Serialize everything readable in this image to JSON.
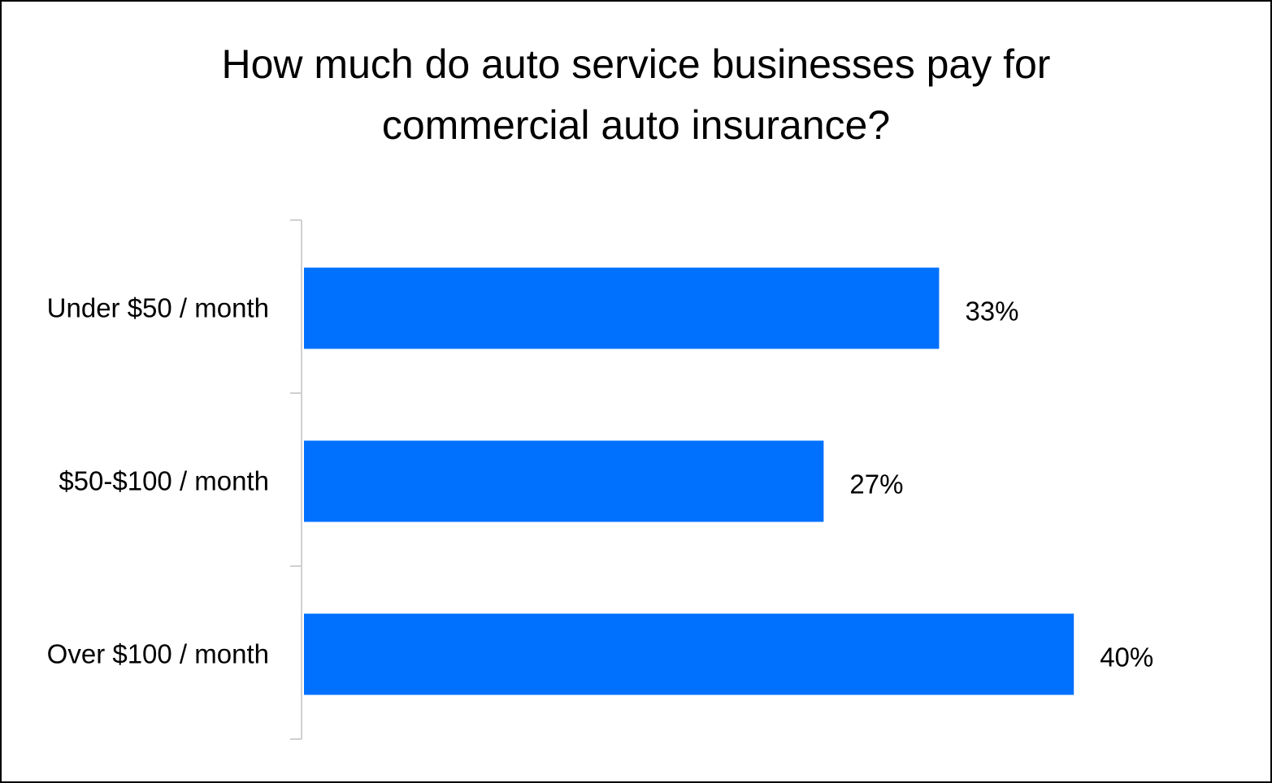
{
  "chart_data": {
    "type": "bar",
    "orientation": "horizontal",
    "title_lines": [
      "How much do auto service businesses pay for",
      "commercial auto insurance?"
    ],
    "categories": [
      "Under $50 / month",
      "$50-$100 / month",
      "Over $100 / month"
    ],
    "values": [
      33,
      27,
      40
    ],
    "value_labels": [
      "33%",
      "27%",
      "40%"
    ],
    "xlabel": "",
    "ylabel": "",
    "xlim": [
      0,
      40
    ],
    "grid": false,
    "legend": "none",
    "bar_color": "#0070FF"
  }
}
